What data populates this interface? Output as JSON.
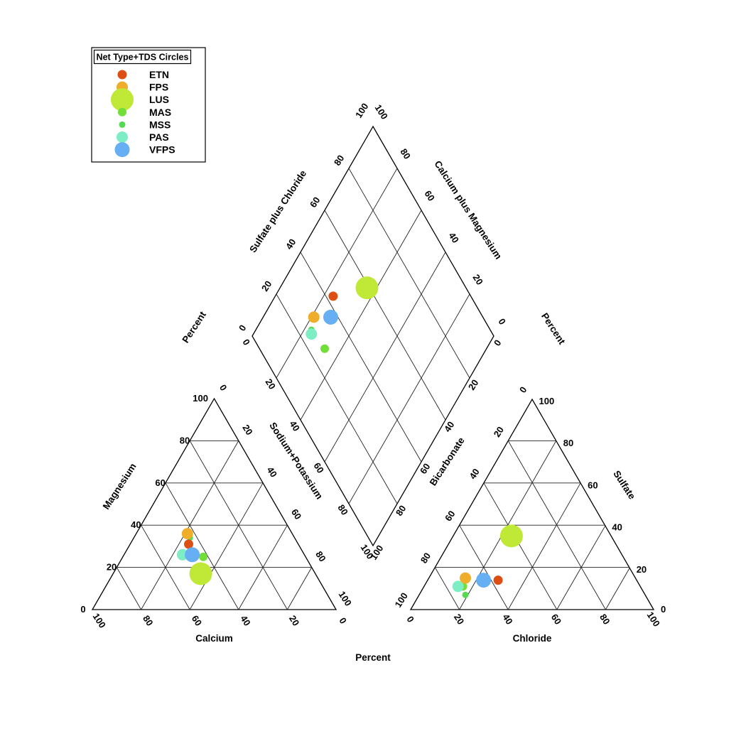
{
  "axes": {
    "magnesium": {
      "title": "Magnesium",
      "ticks": [
        "0",
        "20",
        "40",
        "60",
        "80",
        "100"
      ]
    },
    "calcium": {
      "title": "Calcium",
      "ticks": [
        "100",
        "80",
        "60",
        "40",
        "20",
        "0"
      ]
    },
    "sodium_potassium": {
      "title": "Sodium+Potassium",
      "ticks": [
        "0",
        "20",
        "40",
        "60",
        "80",
        "100"
      ]
    },
    "bicarbonate": {
      "title": "Bicarbonate",
      "ticks": [
        "0",
        "20",
        "40",
        "60",
        "80",
        "100"
      ]
    },
    "chloride": {
      "title": "Chloride",
      "ticks": [
        "0",
        "20",
        "40",
        "60",
        "80",
        "100"
      ]
    },
    "sulfate": {
      "title": "Sulfate",
      "ticks": [
        "0",
        "20",
        "40",
        "60",
        "80",
        "100"
      ]
    },
    "diamond_upper_left": {
      "title": "Sulfate plus Chloride",
      "ticks": [
        "0",
        "20",
        "40",
        "60",
        "80",
        "100"
      ]
    },
    "diamond_upper_right": {
      "title": "Calcium plus Magnesium",
      "ticks": [
        "100",
        "80",
        "60",
        "40",
        "20",
        "0"
      ]
    },
    "diamond_lower_left": {
      "ticks": [
        "0",
        "20",
        "40",
        "60",
        "80",
        "100"
      ]
    },
    "diamond_lower_right": {
      "ticks": [
        "0",
        "20",
        "40",
        "60",
        "80",
        "100"
      ]
    },
    "percent_label": "Percent"
  },
  "chart_data": {
    "type": "scatter",
    "subtype": "piper-trilinear-diagram",
    "legend_title": "Net Type+TDS Circles",
    "unit": "Percent",
    "axis_range": [
      0,
      100
    ],
    "tick_step": 20,
    "grid": true,
    "legend_position": "top-left",
    "plots": {
      "cation_triangle": {
        "bottom_axis": "Calcium",
        "left_axis": "Magnesium",
        "right_axis": "Sodium+Potassium"
      },
      "anion_triangle": {
        "bottom_axis": "Chloride",
        "left_axis": "Bicarbonate",
        "right_axis": "Sulfate"
      },
      "diamond": {
        "upper_left_axis": "Sulfate plus Chloride",
        "upper_right_axis": "Calcium plus Magnesium",
        "lower_left_axis": "Sodium+Potassium",
        "lower_right_axis": "Bicarbonate"
      }
    },
    "bubble_note": "circle size encodes TDS",
    "series": [
      {
        "label": "ETN",
        "color": "#dc4e12",
        "r": 6.5,
        "cation": {
          "ca": 45,
          "mg": 31,
          "na_k": 24
        },
        "anion": {
          "hco3": 57,
          "cl": 29,
          "so4": 14
        }
      },
      {
        "label": "FPS",
        "color": "#eead2a",
        "r": 8,
        "cation": {
          "ca": 43,
          "mg": 36,
          "na_k": 21
        },
        "anion": {
          "hco3": 70,
          "cl": 15,
          "so4": 15
        }
      },
      {
        "label": "LUS",
        "color": "#c0e836",
        "r": 16,
        "cation": {
          "ca": 47,
          "mg": 17,
          "na_k": 36
        },
        "anion": {
          "hco3": 41,
          "cl": 24,
          "so4": 35
        }
      },
      {
        "label": "MAS",
        "color": "#72de38",
        "r": 6,
        "cation": {
          "ca": 42,
          "mg": 25,
          "na_k": 33
        },
        "anion": {
          "hco3": 73,
          "cl": 16,
          "so4": 11
        }
      },
      {
        "label": "MSS",
        "color": "#55da52",
        "r": 4.5,
        "cation": {
          "ca": 43,
          "mg": 34,
          "na_k": 23
        },
        "anion": {
          "hco3": 74,
          "cl": 19,
          "so4": 7
        }
      },
      {
        "label": "PAS",
        "color": "#7deec3",
        "r": 8,
        "cation": {
          "ca": 50,
          "mg": 26,
          "na_k": 24
        },
        "anion": {
          "hco3": 75,
          "cl": 14,
          "so4": 11
        }
      },
      {
        "label": "VFPS",
        "color": "#65aff2",
        "r": 10.5,
        "cation": {
          "ca": 46,
          "mg": 26,
          "na_k": 28
        },
        "anion": {
          "hco3": 63,
          "cl": 23,
          "so4": 14
        }
      }
    ],
    "draw_order": [
      "MSS",
      "MAS",
      "FPS",
      "ETN",
      "PAS",
      "VFPS",
      "LUS"
    ]
  }
}
